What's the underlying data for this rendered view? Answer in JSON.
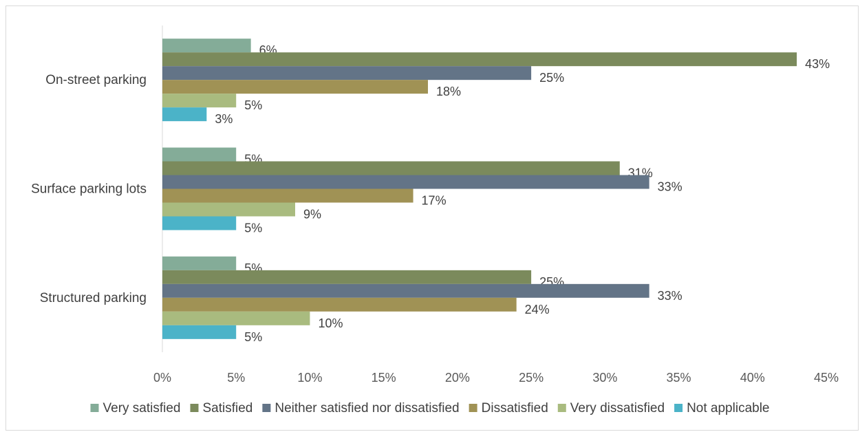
{
  "chart_data": {
    "type": "bar",
    "orientation": "horizontal",
    "categories": [
      "On-street parking",
      "Surface parking lots",
      "Structured parking"
    ],
    "series": [
      {
        "name": "Very satisfied",
        "color": "#84ac98",
        "values": [
          6,
          5,
          5
        ],
        "labels": [
          "6%",
          "5%",
          "5%"
        ]
      },
      {
        "name": "Satisfied",
        "color": "#7b8a5c",
        "values": [
          43,
          31,
          25
        ],
        "labels": [
          "43%",
          "31%",
          "25%"
        ]
      },
      {
        "name": "Neither satisfied nor dissatisfied",
        "color": "#637487",
        "values": [
          25,
          33,
          33
        ],
        "labels": [
          "25%",
          "33%",
          "33%"
        ]
      },
      {
        "name": "Dissatisfied",
        "color": "#a09255",
        "values": [
          18,
          17,
          24
        ],
        "labels": [
          "18%",
          "17%",
          "24%"
        ]
      },
      {
        "name": "Very dissatisfied",
        "color": "#a9bb7f",
        "values": [
          5,
          9,
          10
        ],
        "labels": [
          "5%",
          "9%",
          "10%"
        ]
      },
      {
        "name": "Not applicable",
        "color": "#4bb3c8",
        "values": [
          3,
          5,
          5
        ],
        "labels": [
          "3%",
          "5%",
          "5%"
        ]
      }
    ],
    "xlim": [
      0,
      45
    ],
    "xticks": [
      "0%",
      "5%",
      "10%",
      "15%",
      "20%",
      "25%",
      "30%",
      "35%",
      "40%",
      "45%"
    ],
    "xtick_values": [
      0,
      5,
      10,
      15,
      20,
      25,
      30,
      35,
      40,
      45
    ],
    "grid": false,
    "legend_position": "bottom"
  }
}
